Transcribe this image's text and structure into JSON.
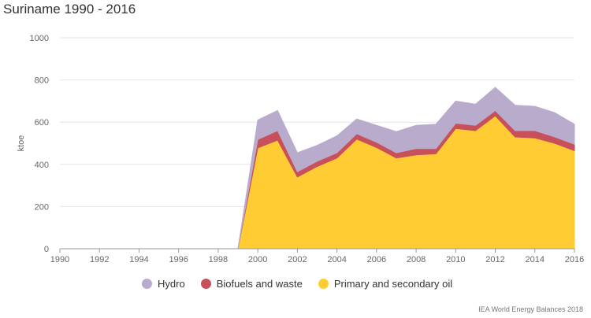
{
  "chart_data": {
    "type": "area",
    "title": "Suriname 1990 - 2016",
    "ylabel": "ktoe",
    "xlabel": "",
    "ylim": [
      0,
      1000
    ],
    "yticks": [
      "0",
      "200",
      "400",
      "600",
      "800",
      "1000"
    ],
    "xticks": [
      "1990",
      "1992",
      "1994",
      "1996",
      "1998",
      "2000",
      "2002",
      "2004",
      "2006",
      "2008",
      "2010",
      "2012",
      "2014",
      "2016"
    ],
    "x": [
      1990,
      1991,
      1992,
      1993,
      1994,
      1995,
      1996,
      1997,
      1998,
      1999,
      2000,
      2001,
      2002,
      2003,
      2004,
      2005,
      2006,
      2007,
      2008,
      2009,
      2010,
      2011,
      2012,
      2013,
      2014,
      2015,
      2016
    ],
    "stacked": true,
    "series": [
      {
        "name": "Primary and secondary oil",
        "color": "#ffcc33",
        "values": [
          0,
          0,
          0,
          0,
          0,
          0,
          0,
          0,
          0,
          0,
          478,
          515,
          340,
          390,
          430,
          520,
          480,
          430,
          445,
          450,
          570,
          560,
          630,
          530,
          525,
          500,
          465
        ]
      },
      {
        "name": "Biofuels and waste",
        "color": "#c8505a",
        "values": [
          0,
          0,
          0,
          0,
          0,
          0,
          0,
          0,
          0,
          0,
          40,
          45,
          25,
          25,
          25,
          25,
          25,
          25,
          30,
          25,
          25,
          25,
          25,
          30,
          35,
          30,
          30
        ]
      },
      {
        "name": "Hydro",
        "color": "#b9abcc",
        "values": [
          0,
          0,
          0,
          0,
          0,
          0,
          0,
          0,
          0,
          0,
          92,
          95,
          90,
          75,
          80,
          70,
          80,
          100,
          110,
          115,
          105,
          100,
          110,
          120,
          115,
          115,
          95
        ]
      }
    ],
    "legend": [
      "Hydro",
      "Biofuels and waste",
      "Primary and secondary oil"
    ],
    "legend_position": "bottom",
    "grid": true,
    "source": "IEA World Energy Balances 2018"
  }
}
